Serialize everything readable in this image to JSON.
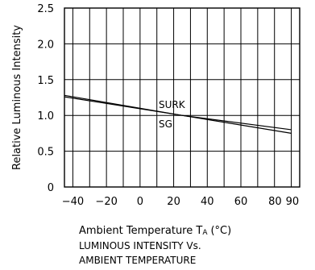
{
  "chart_data": {
    "type": "line",
    "title": "",
    "xlabel": "Ambient Temperature T",
    "xlabel_subscript": "A",
    "xlabel_unit": "(°C)",
    "ylabel": "Relative Luminous Intensity",
    "xlim": [
      -45,
      95
    ],
    "ylim": [
      0,
      2.5
    ],
    "x_ticks": [
      -40,
      -20,
      0,
      20,
      40,
      60,
      80,
      90
    ],
    "x_tick_labels": [
      "−40",
      "−20",
      "0",
      "20",
      "40",
      "60",
      "80",
      "90"
    ],
    "y_ticks": [
      0,
      0.5,
      1.0,
      1.5,
      2.0,
      2.5
    ],
    "y_tick_labels": [
      "0",
      "0.5",
      "1.0",
      "1.5",
      "2.0",
      "2.5"
    ],
    "x_grid": [
      -40,
      -30,
      -20,
      -10,
      0,
      10,
      20,
      30,
      40,
      50,
      60,
      70,
      80,
      90
    ],
    "y_grid": [
      0.5,
      1.0,
      1.5,
      2.0
    ],
    "grid": true,
    "series": [
      {
        "name": "SURK",
        "x": [
          -45,
          25,
          90
        ],
        "y": [
          1.28,
          1.0,
          0.75
        ]
      },
      {
        "name": "SG",
        "x": [
          -45,
          25,
          90
        ],
        "y": [
          1.26,
          1.0,
          0.8
        ]
      }
    ],
    "caption": [
      "LUMINOUS INTENSITY Vs.",
      "AMBIENT TEMPERATURE"
    ]
  }
}
